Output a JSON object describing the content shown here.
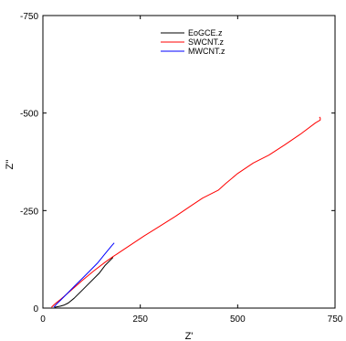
{
  "chart_data": {
    "type": "line",
    "title": "",
    "xlabel": "Z'",
    "ylabel": "Z''",
    "xlim": [
      0,
      750
    ],
    "ylim": [
      0,
      -750
    ],
    "xticks": [
      0,
      250,
      500,
      750
    ],
    "yticks": [
      0,
      -250,
      -500,
      -750
    ],
    "grid": false,
    "legend_position": "top-center",
    "series": [
      {
        "name": "EoGCE.z",
        "color": "#000000",
        "points": [
          [
            30,
            -2
          ],
          [
            45,
            -5
          ],
          [
            55,
            -8
          ],
          [
            65,
            -13
          ],
          [
            80,
            -25
          ],
          [
            100,
            -45
          ],
          [
            120,
            -65
          ],
          [
            145,
            -90
          ],
          [
            160,
            -110
          ],
          [
            175,
            -125
          ],
          [
            180,
            -130
          ]
        ]
      },
      {
        "name": "SWCNT.z",
        "color": "#ff0000",
        "points": [
          [
            22,
            -2
          ],
          [
            28,
            -8
          ],
          [
            35,
            -14
          ],
          [
            45,
            -22
          ],
          [
            60,
            -35
          ],
          [
            80,
            -52
          ],
          [
            100,
            -70
          ],
          [
            130,
            -95
          ],
          [
            160,
            -118
          ],
          [
            180,
            -132
          ],
          [
            200,
            -145
          ],
          [
            230,
            -165
          ],
          [
            260,
            -185
          ],
          [
            300,
            -210
          ],
          [
            340,
            -235
          ],
          [
            380,
            -262
          ],
          [
            410,
            -282
          ],
          [
            450,
            -302
          ],
          [
            470,
            -320
          ],
          [
            500,
            -345
          ],
          [
            540,
            -372
          ],
          [
            580,
            -392
          ],
          [
            620,
            -418
          ],
          [
            660,
            -445
          ],
          [
            700,
            -475
          ],
          [
            712,
            -482
          ],
          [
            712,
            -487
          ],
          [
            710,
            -490
          ]
        ]
      },
      {
        "name": "MWCNT.z",
        "color": "#0000ff",
        "points": [
          [
            28,
            -2
          ],
          [
            35,
            -10
          ],
          [
            45,
            -20
          ],
          [
            60,
            -35
          ],
          [
            80,
            -55
          ],
          [
            100,
            -75
          ],
          [
            120,
            -95
          ],
          [
            140,
            -115
          ],
          [
            160,
            -140
          ],
          [
            175,
            -158
          ],
          [
            183,
            -167
          ]
        ]
      }
    ]
  }
}
